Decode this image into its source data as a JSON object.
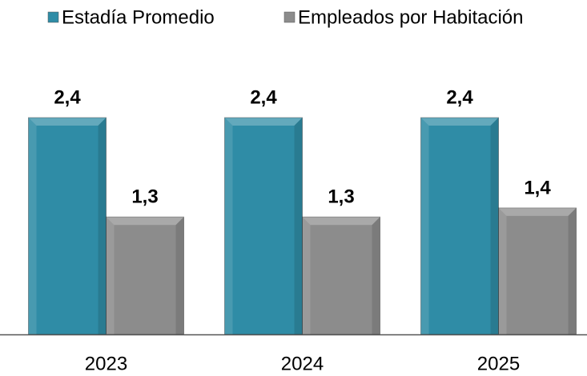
{
  "chart_data": {
    "type": "bar",
    "categories": [
      "2023",
      "2024",
      "2025"
    ],
    "series": [
      {
        "name": "Estadía Promedio",
        "color": "#2f8ca6",
        "values": [
          2.4,
          2.4,
          2.4
        ],
        "value_labels": [
          "2,4",
          "2,4",
          "2,4"
        ]
      },
      {
        "name": "Empleados por Habitación",
        "color": "#8c8c8c",
        "values": [
          1.3,
          1.3,
          1.4
        ],
        "value_labels": [
          "1,3",
          "1,3",
          "1,4"
        ]
      }
    ],
    "legend": "top"
  }
}
